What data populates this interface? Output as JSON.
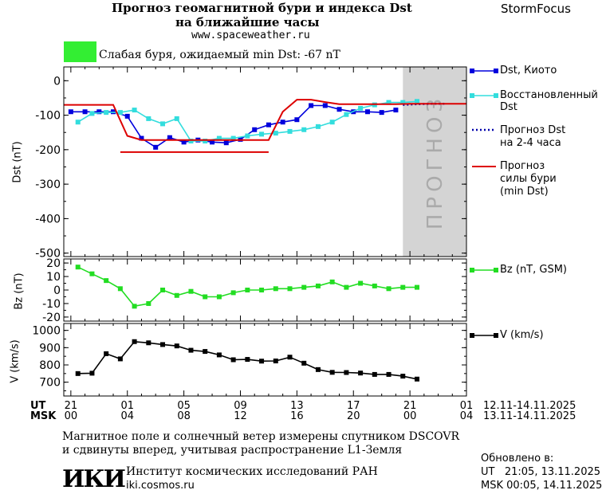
{
  "header": {
    "title_line1": "Прогноз геомагнитной бури и индекса Dst",
    "title_line2": "на ближайшие часы",
    "url": "www.spaceweather.ru",
    "brand": "StormFocus",
    "status_text": "Слабая буря, ожидаемый min Dst: -67 nT",
    "status_color": "#33ee33"
  },
  "legend": {
    "dst_kyoto": "Dst, Киото",
    "dst_restored_l1": "Восстановленный",
    "dst_restored_l2": "Dst",
    "forecast_l1": "Прогноз Dst",
    "forecast_l2": "на 2-4 часа",
    "storm_l1": "Прогноз",
    "storm_l2": "силы бури",
    "storm_l3": "(min Dst)",
    "bz": "Bz (nT, GSM)",
    "v": "V (km/s)"
  },
  "forecast_label": "ПРОГНОЗ",
  "axes": {
    "dst_label": "Dst (nT)",
    "bz_label": "Bz (nT)",
    "v_label": "V (km/s)",
    "dst_ticks": [
      "0",
      "-100",
      "-200",
      "-300",
      "-400",
      "-500"
    ],
    "bz_ticks": [
      "20",
      "10",
      "0",
      "-10",
      "-20"
    ],
    "v_ticks": [
      "1000",
      "900",
      "800",
      "700"
    ],
    "ut_label": "UT",
    "msk_label": "MSK",
    "ut_ticks": [
      "21",
      "01",
      "05",
      "09",
      "13",
      "17",
      "21",
      "01"
    ],
    "msk_ticks": [
      "00",
      "04",
      "08",
      "12",
      "16",
      "20",
      "00",
      "04"
    ],
    "ut_range": "12.11-14.11.2025",
    "msk_range": "13.11-14.11.2025"
  },
  "footer": {
    "note_l1": "Магнитное поле и солнечный ветер измерены спутником DSCOVR",
    "note_l2": "и сдвинуты вперед, учитывая распространение L1-Земля",
    "logo_text": "ИКИ",
    "institute": "Институт космических исследований РАН",
    "institute_url": "iki.cosmos.ru",
    "updated_label": "Обновлено в:",
    "updated_ut": "UT   21:05, 13.11.2025",
    "updated_msk": "MSK 00:05, 14.11.2025"
  },
  "colors": {
    "dst_kyoto": "#0000dd",
    "dst_restored": "#33dddd",
    "forecast": "#0000aa",
    "storm": "#dd0000",
    "bz": "#22dd22",
    "v": "#000000",
    "forecast_band": "#d4d4d4"
  },
  "chart_data": {
    "type": "line",
    "x_unit": "hours since 21 UT 12.11.2025",
    "xlim": [
      -0.5,
      28
    ],
    "forecast_region_x": [
      23.5,
      28
    ],
    "panels": [
      {
        "name": "Dst",
        "ylim": [
          -510,
          40
        ],
        "series": [
          {
            "name": "Dst, Киото",
            "style": "line-square",
            "color": "#0000dd",
            "x": [
              0,
              1,
              2,
              3,
              4,
              5,
              6,
              7,
              8,
              9,
              10,
              11,
              12,
              13,
              14,
              15,
              16,
              17,
              18,
              19,
              20,
              21,
              22,
              23
            ],
            "y": [
              -90,
              -90,
              -90,
              -90,
              -103,
              -167,
              -193,
              -165,
              -178,
              -172,
              -178,
              -180,
              -170,
              -142,
              -128,
              -120,
              -113,
              -72,
              -72,
              -83,
              -90,
              -90,
              -92,
              -85
            ]
          },
          {
            "name": "Восстановленный Dst",
            "style": "line-square",
            "color": "#33dddd",
            "x": [
              0.5,
              1.5,
              2.5,
              3.5,
              4.5,
              5.5,
              6.5,
              7.5,
              8.5,
              9.5,
              10.5,
              11.5,
              12.5,
              13.5,
              14.5,
              15.5,
              16.5,
              17.5,
              18.5,
              19.5,
              20.5,
              21.5,
              22.5,
              23.5,
              24.5
            ],
            "y": [
              -120,
              -95,
              -92,
              -92,
              -85,
              -110,
              -125,
              -110,
              -175,
              -175,
              -167,
              -167,
              -160,
              -155,
              -152,
              -147,
              -142,
              -133,
              -120,
              -98,
              -80,
              -70,
              -63,
              -63,
              -60
            ]
          },
          {
            "name": "Прогноз Dst на 2-4 часа",
            "style": "dotted",
            "color": "#0000aa",
            "x": [
              23.5,
              24.5,
              25.5,
              26.5
            ],
            "y": [
              -70,
              -68,
              -67,
              -67
            ]
          },
          {
            "name": "Прогноз силы бури (min Dst)",
            "style": "line",
            "color": "#dd0000",
            "x": [
              -0.5,
              3,
              4,
              5,
              6,
              7,
              8,
              9,
              10,
              11,
              12,
              13,
              14,
              15,
              16,
              17,
              18,
              19,
              20,
              21,
              22,
              23,
              24,
              25,
              26,
              27,
              28
            ],
            "y": [
              -70,
              -70,
              -160,
              -172,
              -172,
              -172,
              -172,
              -172,
              -172,
              -172,
              -172,
              -172,
              -172,
              -90,
              -55,
              -55,
              -62,
              -68,
              -68,
              -68,
              -68,
              -68,
              -67,
              -67,
              -67,
              -67,
              -67
            ]
          },
          {
            "name": "",
            "style": "line",
            "color": "#dd0000",
            "x": [
              3.5,
              14
            ],
            "y": [
              -207,
              -207
            ]
          }
        ]
      },
      {
        "name": "Bz",
        "ylim": [
          -23,
          23
        ],
        "series": [
          {
            "name": "Bz (nT, GSM)",
            "style": "line-square",
            "color": "#22dd22",
            "x": [
              0.5,
              1.5,
              2.5,
              3.5,
              4.5,
              5.5,
              6.5,
              7.5,
              8.5,
              9.5,
              10.5,
              11.5,
              12.5,
              13.5,
              14.5,
              15.5,
              16.5,
              17.5,
              18.5,
              19.5,
              20.5,
              21.5,
              22.5,
              23.5,
              24.5
            ],
            "y": [
              17,
              12,
              7,
              1,
              -12,
              -10,
              0,
              -4,
              -1,
              -5,
              -5,
              -2,
              0,
              0,
              1,
              1,
              2,
              3,
              6,
              2,
              5,
              3,
              1,
              2,
              2
            ]
          }
        ]
      },
      {
        "name": "V",
        "ylim": [
          620,
          1040
        ],
        "series": [
          {
            "name": "V (km/s)",
            "style": "line-square",
            "color": "#000000",
            "x": [
              0.5,
              1.5,
              2.5,
              3.5,
              4.5,
              5.5,
              6.5,
              7.5,
              8.5,
              9.5,
              10.5,
              11.5,
              12.5,
              13.5,
              14.5,
              15.5,
              16.5,
              17.5,
              18.5,
              19.5,
              20.5,
              21.5,
              22.5,
              23.5,
              24.5
            ],
            "y": [
              750,
              752,
              865,
              835,
              935,
              928,
              918,
              910,
              885,
              878,
              858,
              830,
              832,
              822,
              823,
              845,
              810,
              773,
              757,
              756,
              753,
              745,
              745,
              735,
              718
            ]
          }
        ]
      }
    ]
  }
}
